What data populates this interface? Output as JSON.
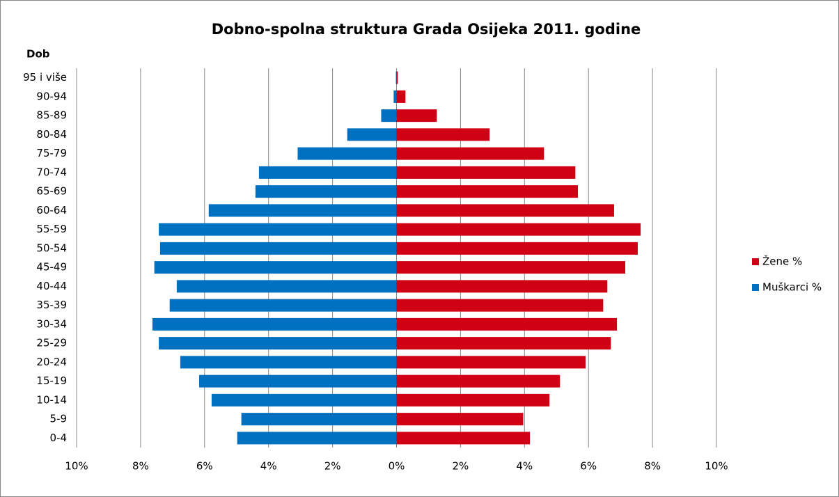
{
  "chart_data": {
    "type": "pyramid",
    "title": "Dobno-spolna struktura Grada Osijeka 2011. godine",
    "ylabel": "Dob",
    "categories": [
      "0-4",
      "5-9",
      "10-14",
      "15-19",
      "20-24",
      "25-29",
      "30-34",
      "35-39",
      "40-44",
      "45-49",
      "50-54",
      "55-59",
      "60-64",
      "65-69",
      "70-74",
      "75-79",
      "80-84",
      "85-89",
      "90-94",
      "95 i više"
    ],
    "series": [
      {
        "name": "Žene %",
        "color": "#d00015",
        "values": [
          4.17,
          3.96,
          4.78,
          5.11,
          5.91,
          6.7,
          6.89,
          6.46,
          6.59,
          7.15,
          7.54,
          7.63,
          6.8,
          5.67,
          5.59,
          4.61,
          2.91,
          1.26,
          0.28,
          0.04
        ]
      },
      {
        "name": "Muškarci %",
        "color": "#0070c0",
        "values": [
          -4.98,
          -4.85,
          -5.78,
          -6.17,
          -6.76,
          -7.43,
          -7.63,
          -7.09,
          -6.87,
          -7.57,
          -7.39,
          -7.43,
          -5.87,
          -4.41,
          -4.3,
          -3.09,
          -1.54,
          -0.48,
          -0.09,
          -0.02
        ]
      }
    ],
    "xlim": [
      -10,
      10
    ],
    "xticks": [
      {
        "value": -10,
        "label": "10%"
      },
      {
        "value": -8,
        "label": "8%"
      },
      {
        "value": -6,
        "label": "6%"
      },
      {
        "value": -4,
        "label": "4%"
      },
      {
        "value": -2,
        "label": "2%"
      },
      {
        "value": 0,
        "label": "0%"
      },
      {
        "value": 2,
        "label": "2%"
      },
      {
        "value": 4,
        "label": "4%"
      },
      {
        "value": 6,
        "label": "6%"
      },
      {
        "value": 8,
        "label": "8%"
      },
      {
        "value": 10,
        "label": "10%"
      }
    ],
    "grid": true,
    "legend": "right"
  }
}
